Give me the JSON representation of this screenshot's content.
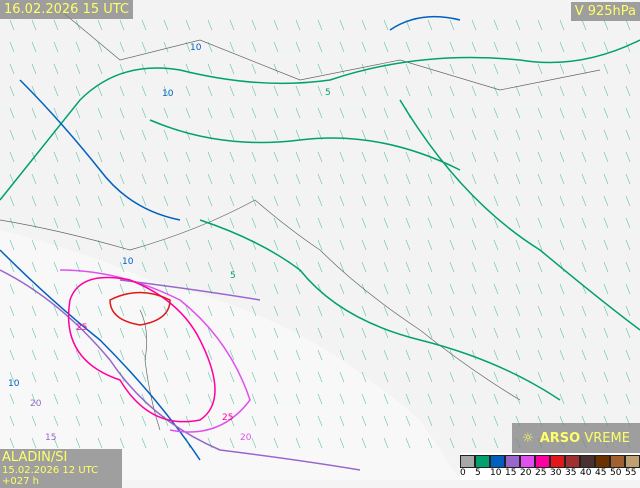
{
  "header": {
    "valid_time": "16.02.2026 15 UTC",
    "level": "V 925hPa"
  },
  "footer": {
    "model": "ALADIN/SI",
    "run": "15.02.2026 12 UTC +027 h"
  },
  "logo": {
    "brand": "ARSO",
    "product": "VREME",
    "icon": "sun-icon"
  },
  "legend": {
    "values": [
      "0",
      "5",
      "10",
      "15",
      "20",
      "25",
      "30",
      "35",
      "40",
      "45",
      "50",
      "55"
    ],
    "colors": [
      "#a8a8a8",
      "#00a070",
      "#0060c0",
      "#9966cc",
      "#e050f0",
      "#ff00a0",
      "#e01818",
      "#a03030",
      "#4a3030",
      "#6a3200",
      "#a06030",
      "#c0a070"
    ]
  },
  "contour_labels": [
    "10",
    "10",
    "5",
    "10",
    "5",
    "25",
    "25",
    "20",
    "10",
    "20",
    "15"
  ]
}
